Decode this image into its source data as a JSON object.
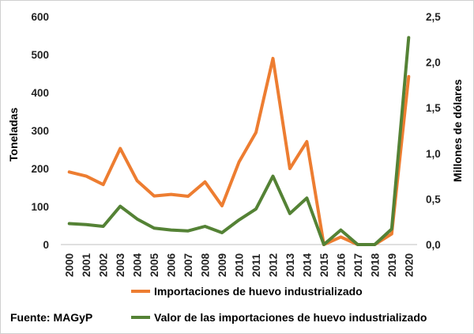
{
  "chart_data": {
    "type": "line",
    "title": "",
    "x": [
      "2000",
      "2001",
      "2002",
      "2003",
      "2004",
      "2005",
      "2006",
      "2007",
      "2008",
      "2009",
      "2010",
      "2011",
      "2012",
      "2013",
      "2014",
      "2015",
      "2016",
      "2017",
      "2018",
      "2019",
      "2020"
    ],
    "series": [
      {
        "name": "Importaciones de huevo industrializado",
        "axis": "left",
        "color": "#ED7D31",
        "values": [
          191,
          180,
          158,
          253,
          168,
          128,
          132,
          127,
          165,
          102,
          217,
          295,
          490,
          200,
          271,
          0,
          20,
          0,
          0,
          28,
          442
        ]
      },
      {
        "name": "Valor de las importaciones de huevo industrializado",
        "axis": "right",
        "color": "#548235",
        "values": [
          0.23,
          0.22,
          0.2,
          0.42,
          0.28,
          0.18,
          0.16,
          0.15,
          0.2,
          0.13,
          0.27,
          0.39,
          0.75,
          0.34,
          0.51,
          0.0,
          0.16,
          0.0,
          0.0,
          0.17,
          2.27
        ]
      }
    ],
    "ylabel": "Toneladas",
    "ylim": [
      0,
      600
    ],
    "yticks": [
      "0",
      "100",
      "200",
      "300",
      "400",
      "500",
      "600"
    ],
    "ylabel_right": "Millones de dólares",
    "ylim_right": [
      0,
      2.5
    ],
    "yticks_right": [
      "0,0",
      "0,5",
      "1,0",
      "1,5",
      "2,0",
      "2,5"
    ],
    "grid": false,
    "legend_position": "bottom"
  },
  "legend": {
    "series1_label": "Importaciones de huevo industrializado",
    "series2_label": "Valor de las importaciones de huevo industrializado"
  },
  "source": "Fuente: MAGyP"
}
